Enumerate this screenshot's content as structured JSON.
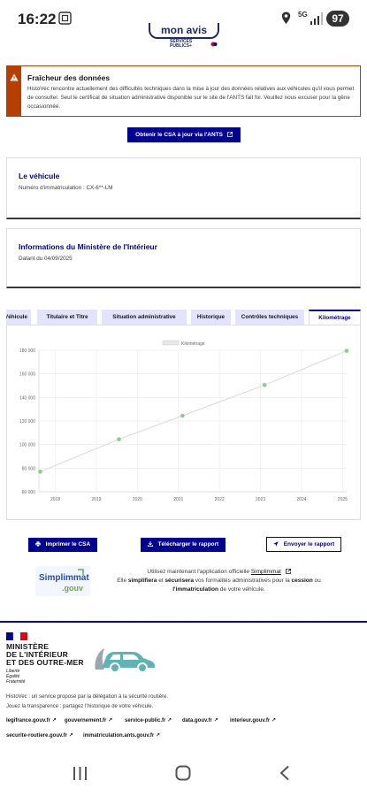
{
  "status_bar": {
    "time": "16:22",
    "network": "5G",
    "battery": "97"
  },
  "logo_top": {
    "text": "mon avis",
    "sub_line1": "SERVICES",
    "sub_line2": "PUBLICS+"
  },
  "alert": {
    "title": "Fraîcheur des données",
    "text": "HistoVec rencontre actuellement des difficultés techniques dans la mise à jour des données relatives aux véhicules qu'il vous permet de consulter. Seul le certificat de situation administrative disponible sur le site de l'ANTS fait foi. Veuillez nous excuser pour la gêne occasionnée."
  },
  "csa_button": "Obtenir le CSA à jour via l'ANTS",
  "vehicule": {
    "title": "Le véhicule",
    "immat_line": "Numéro d'immatriculation : CX-6**-LM"
  },
  "ministere": {
    "title": "Informations du Ministère de l'Intérieur",
    "date_line": "Datant du 04/09/2025"
  },
  "tabs": [
    {
      "label": "Véhicule",
      "active": false
    },
    {
      "label": "Titulaire et Titre",
      "active": false
    },
    {
      "label": "Situation administrative",
      "active": false
    },
    {
      "label": "Historique",
      "active": false
    },
    {
      "label": "Contrôles techniques",
      "active": false
    },
    {
      "label": "Kilométrage",
      "active": true
    }
  ],
  "chart_data": {
    "type": "line",
    "legend": [
      "Kilométrage"
    ],
    "legend_position": "top-center",
    "x_ticks": [
      "2018",
      "2019",
      "2020",
      "2021",
      "2022",
      "2023",
      "2024",
      "2025"
    ],
    "y_ticks": [
      "60 000",
      "80 000",
      "100 000",
      "120 000",
      "140 000",
      "160 000",
      "180 000"
    ],
    "xlim": [
      2017.6,
      2025.1
    ],
    "ylim": [
      60000,
      180000
    ],
    "grid": true,
    "series": [
      {
        "name": "Kilométrage",
        "color": "#8fcb8a",
        "points": [
          {
            "x": 2017.63,
            "y": 77000
          },
          {
            "x": 2019.55,
            "y": 104500
          },
          {
            "x": 2021.1,
            "y": 124500
          },
          {
            "x": 2023.1,
            "y": 150500
          },
          {
            "x": 2025.1,
            "y": 179500
          }
        ]
      }
    ]
  },
  "actions": {
    "print": "Imprimer le CSA",
    "download": "Télécharger le rapport",
    "send": "Envoyer le rapport"
  },
  "promo": {
    "logo_top": "Simplimmat",
    "logo_bottom": ".gouv",
    "line1_a": "Utilisez maintenant l'application officielle ",
    "line1_link": "Simplimmat",
    "line2_a": "Elle ",
    "line2_b1": "simplifiera",
    "line2_c": " et ",
    "line2_b2": "sécurisera",
    "line2_d": " vos formalités administratives pour la ",
    "line2_b3": "cession",
    "line2_e": " ou",
    "line3_b": "l'immatriculation",
    "line3_a": " de votre véhicule."
  },
  "footer": {
    "ministry_lines": [
      "MINISTÈRE",
      "DE L'INTÉRIEUR",
      "ET DES OUTRE-MER"
    ],
    "devise": [
      "Liberté",
      "Égalité",
      "Fraternité"
    ],
    "desc1": "HistoVec : un service proposé par la délégation à la sécurité routière.",
    "desc2": "Jouez la transparence : partagez l'historique de votre véhicule.",
    "links": [
      "legifrance.gouv.fr",
      "gouvernement.fr",
      "service-public.fr",
      "data.gouv.fr",
      "interieur.gouv.fr",
      "securite-routiere.gouv.fr",
      "immatriculation.ants.gouv.fr"
    ]
  },
  "colors": {
    "primary": "#000091",
    "warning": "#b34000",
    "series": "#8fcb8a"
  }
}
